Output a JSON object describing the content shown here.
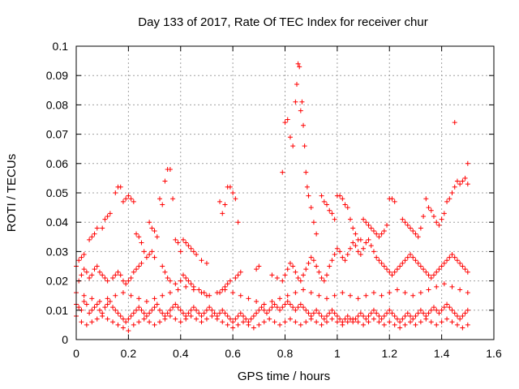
{
  "chart_data": {
    "type": "scatter",
    "title": "Day 133 of 2017, Rate Of TEC Index for receiver chur",
    "xlabel": "GPS time / hours",
    "ylabel": "ROTI / TECUs",
    "xlim": [
      0,
      1.6
    ],
    "ylim": [
      0,
      0.1
    ],
    "xticks": [
      "0",
      "0.2",
      "0.4",
      "0.6",
      "0.8",
      "1",
      "1.2",
      "1.4",
      "1.6"
    ],
    "yticks": [
      "0",
      "0.01",
      "0.02",
      "0.03",
      "0.04",
      "0.05",
      "0.06",
      "0.07",
      "0.08",
      "0.09",
      "0.1"
    ],
    "grid": true,
    "marker": "+",
    "series_color": "#ff0000",
    "series": [
      {
        "x": [
          0.0,
          0.01,
          0.02,
          0.03,
          0.04,
          0.05,
          0.06,
          0.07,
          0.08,
          0.09,
          0.1,
          0.11,
          0.12,
          0.13,
          0.14,
          0.15,
          0.16,
          0.17,
          0.18,
          0.19,
          0.2,
          0.21,
          0.22,
          0.23,
          0.24,
          0.25,
          0.26,
          0.27,
          0.28,
          0.29,
          0.3,
          0.31,
          0.32,
          0.33,
          0.34,
          0.35,
          0.36,
          0.37,
          0.38,
          0.39,
          0.4,
          0.41,
          0.42,
          0.43,
          0.44,
          0.45,
          0.46,
          0.47,
          0.48,
          0.49,
          0.5,
          0.51,
          0.52,
          0.53,
          0.54,
          0.55,
          0.56,
          0.57,
          0.58,
          0.59,
          0.6,
          0.61,
          0.62,
          0.63,
          0.64,
          0.65,
          0.66,
          0.67,
          0.68,
          0.69,
          0.7,
          0.71,
          0.72,
          0.73,
          0.74,
          0.75,
          0.76,
          0.77,
          0.78,
          0.79,
          0.8,
          0.81,
          0.82,
          0.83,
          0.84,
          0.85,
          0.86,
          0.87,
          0.88,
          0.89,
          0.9,
          0.91,
          0.92,
          0.93,
          0.94,
          0.95,
          0.96,
          0.97,
          0.98,
          0.99,
          1.0,
          1.01,
          1.02,
          1.03,
          1.04,
          1.05,
          1.06,
          1.07,
          1.08,
          1.09,
          1.1,
          1.11,
          1.12,
          1.13,
          1.14,
          1.15,
          1.16,
          1.17,
          1.18,
          1.19,
          1.2,
          1.21,
          1.22,
          1.23,
          1.24,
          1.25,
          1.26,
          1.27,
          1.28,
          1.29,
          1.3,
          1.31,
          1.32,
          1.33,
          1.34,
          1.35,
          1.36,
          1.37,
          1.38,
          1.39,
          1.4,
          1.41,
          1.42,
          1.43,
          1.44,
          1.45,
          1.46,
          1.47,
          1.48,
          1.49,
          1.5,
          0.0,
          0.02,
          0.04,
          0.06,
          0.08,
          0.1,
          0.12,
          0.14,
          0.16,
          0.18,
          0.2,
          0.22,
          0.24,
          0.26,
          0.28,
          0.3,
          0.32,
          0.34,
          0.36,
          0.38,
          0.4,
          0.42,
          0.44,
          0.46,
          0.48,
          0.5,
          0.52,
          0.54,
          0.56,
          0.58,
          0.6,
          0.62,
          0.64,
          0.66,
          0.68,
          0.7,
          0.72,
          0.74,
          0.76,
          0.78,
          0.8,
          0.82,
          0.84,
          0.86,
          0.88,
          0.9,
          0.92,
          0.94,
          0.96,
          0.98,
          1.0,
          1.02,
          1.04,
          1.06,
          1.08,
          1.1,
          1.12,
          1.14,
          1.16,
          1.18,
          1.2,
          1.22,
          1.24,
          1.26,
          1.28,
          1.3,
          1.32,
          1.34,
          1.36,
          1.38,
          1.4,
          1.42,
          1.44,
          1.46,
          1.48,
          1.5,
          0.0,
          0.03,
          0.06,
          0.09,
          0.12,
          0.15,
          0.18,
          0.21,
          0.24,
          0.27,
          0.3,
          0.33,
          0.36,
          0.39,
          0.42,
          0.45,
          0.48,
          0.51,
          0.54,
          0.57,
          0.6,
          0.63,
          0.66,
          0.69,
          0.72,
          0.75,
          0.78,
          0.81,
          0.84,
          0.87,
          0.9,
          0.93,
          0.96,
          0.99,
          1.02,
          1.05,
          1.08,
          1.11,
          1.14,
          1.17,
          1.2,
          1.23,
          1.26,
          1.29,
          1.32,
          1.35,
          1.38,
          1.41,
          1.44,
          1.47,
          1.5,
          0.01,
          0.02,
          0.03,
          0.04,
          0.05,
          0.06,
          0.07,
          0.08,
          0.09,
          0.1,
          0.11,
          0.12,
          0.14,
          0.15,
          0.16,
          0.17,
          0.18,
          0.19,
          0.2,
          0.21,
          0.22,
          0.23,
          0.24,
          0.25,
          0.27,
          0.28,
          0.29,
          0.3,
          0.33,
          0.34,
          0.35,
          0.36,
          0.38,
          0.4,
          0.41,
          0.42,
          0.43,
          0.44,
          0.45,
          0.47,
          0.49,
          0.5,
          0.55,
          0.56,
          0.57,
          0.58,
          0.59,
          0.61,
          0.62,
          0.63,
          0.69,
          0.7,
          0.75,
          0.77,
          0.79,
          0.8,
          0.81,
          0.82,
          0.83,
          0.84,
          0.85,
          0.86,
          0.87,
          0.88,
          0.89,
          0.9,
          0.91,
          0.92,
          0.93,
          0.94,
          0.95,
          0.96,
          0.97,
          0.98,
          0.99,
          1.0,
          1.01,
          1.02,
          1.03,
          1.04,
          1.05,
          1.06,
          1.07,
          1.08,
          1.09,
          1.1,
          1.11,
          1.12,
          1.13,
          1.14,
          1.15,
          1.16,
          1.17,
          1.18,
          1.19,
          1.2,
          1.21,
          1.22,
          1.23,
          1.24,
          1.25,
          1.26,
          1.27,
          1.28,
          1.29,
          1.3,
          1.31,
          1.32,
          1.33,
          1.34,
          1.35,
          1.36,
          1.37,
          1.38,
          1.39,
          1.4,
          1.41,
          1.42,
          1.43,
          1.44,
          1.45,
          1.46,
          1.47,
          1.48,
          1.49,
          1.5,
          0.79,
          0.8,
          0.81,
          0.82,
          0.83,
          0.84,
          0.845,
          0.85,
          0.855,
          0.86,
          0.865,
          0.87,
          0.875,
          0.88,
          0.885,
          0.89,
          0.9,
          0.91,
          0.92,
          1.45,
          1.5
        ],
        "y": [
          0.012,
          0.011,
          0.01,
          0.013,
          0.012,
          0.009,
          0.01,
          0.011,
          0.012,
          0.01,
          0.009,
          0.011,
          0.012,
          0.013,
          0.011,
          0.01,
          0.009,
          0.008,
          0.007,
          0.006,
          0.007,
          0.008,
          0.009,
          0.01,
          0.011,
          0.01,
          0.009,
          0.008,
          0.009,
          0.01,
          0.011,
          0.012,
          0.01,
          0.009,
          0.008,
          0.009,
          0.01,
          0.011,
          0.012,
          0.011,
          0.01,
          0.009,
          0.008,
          0.009,
          0.01,
          0.011,
          0.01,
          0.009,
          0.008,
          0.009,
          0.01,
          0.011,
          0.01,
          0.009,
          0.008,
          0.009,
          0.01,
          0.009,
          0.008,
          0.007,
          0.006,
          0.007,
          0.008,
          0.009,
          0.008,
          0.007,
          0.006,
          0.007,
          0.008,
          0.009,
          0.01,
          0.011,
          0.01,
          0.009,
          0.01,
          0.011,
          0.012,
          0.011,
          0.01,
          0.011,
          0.012,
          0.013,
          0.012,
          0.011,
          0.01,
          0.011,
          0.012,
          0.011,
          0.01,
          0.009,
          0.008,
          0.009,
          0.01,
          0.009,
          0.008,
          0.007,
          0.008,
          0.009,
          0.01,
          0.009,
          0.008,
          0.007,
          0.006,
          0.007,
          0.008,
          0.007,
          0.006,
          0.007,
          0.008,
          0.009,
          0.008,
          0.007,
          0.008,
          0.009,
          0.01,
          0.009,
          0.008,
          0.007,
          0.008,
          0.009,
          0.01,
          0.009,
          0.008,
          0.007,
          0.006,
          0.007,
          0.008,
          0.009,
          0.008,
          0.007,
          0.008,
          0.009,
          0.01,
          0.009,
          0.008,
          0.009,
          0.01,
          0.011,
          0.01,
          0.009,
          0.01,
          0.011,
          0.012,
          0.011,
          0.01,
          0.009,
          0.008,
          0.007,
          0.008,
          0.009,
          0.01,
          0.008,
          0.006,
          0.005,
          0.006,
          0.007,
          0.008,
          0.007,
          0.006,
          0.005,
          0.004,
          0.003,
          0.005,
          0.006,
          0.007,
          0.006,
          0.005,
          0.006,
          0.007,
          0.008,
          0.007,
          0.006,
          0.007,
          0.008,
          0.007,
          0.006,
          0.007,
          0.008,
          0.007,
          0.006,
          0.005,
          0.004,
          0.005,
          0.006,
          0.005,
          0.004,
          0.005,
          0.006,
          0.007,
          0.006,
          0.005,
          0.006,
          0.007,
          0.006,
          0.005,
          0.006,
          0.007,
          0.006,
          0.005,
          0.006,
          0.007,
          0.006,
          0.005,
          0.006,
          0.007,
          0.006,
          0.005,
          0.006,
          0.007,
          0.006,
          0.005,
          0.006,
          0.005,
          0.004,
          0.005,
          0.006,
          0.005,
          0.006,
          0.007,
          0.006,
          0.005,
          0.006,
          0.007,
          0.006,
          0.005,
          0.004,
          0.005,
          0.016,
          0.015,
          0.014,
          0.013,
          0.014,
          0.015,
          0.016,
          0.015,
          0.014,
          0.013,
          0.014,
          0.015,
          0.016,
          0.017,
          0.018,
          0.017,
          0.016,
          0.015,
          0.016,
          0.017,
          0.016,
          0.015,
          0.014,
          0.013,
          0.012,
          0.013,
          0.014,
          0.015,
          0.016,
          0.017,
          0.016,
          0.015,
          0.014,
          0.015,
          0.016,
          0.015,
          0.014,
          0.015,
          0.016,
          0.015,
          0.016,
          0.017,
          0.016,
          0.015,
          0.016,
          0.017,
          0.018,
          0.019,
          0.018,
          0.017,
          0.016,
          0.02,
          0.022,
          0.024,
          0.023,
          0.021,
          0.022,
          0.024,
          0.025,
          0.023,
          0.022,
          0.021,
          0.02,
          0.021,
          0.022,
          0.023,
          0.022,
          0.02,
          0.019,
          0.02,
          0.021,
          0.023,
          0.024,
          0.025,
          0.026,
          0.028,
          0.029,
          0.03,
          0.028,
          0.025,
          0.023,
          0.021,
          0.02,
          0.019,
          0.02,
          0.022,
          0.021,
          0.02,
          0.019,
          0.018,
          0.017,
          0.016,
          0.015,
          0.016,
          0.017,
          0.018,
          0.019,
          0.02,
          0.021,
          0.022,
          0.023,
          0.024,
          0.025,
          0.022,
          0.021,
          0.02,
          0.022,
          0.024,
          0.026,
          0.025,
          0.023,
          0.021,
          0.02,
          0.022,
          0.024,
          0.026,
          0.028,
          0.027,
          0.025,
          0.023,
          0.021,
          0.02,
          0.022,
          0.025,
          0.027,
          0.029,
          0.031,
          0.03,
          0.028,
          0.027,
          0.029,
          0.031,
          0.033,
          0.032,
          0.03,
          0.029,
          0.031,
          0.033,
          0.034,
          0.032,
          0.03,
          0.028,
          0.027,
          0.026,
          0.025,
          0.024,
          0.023,
          0.022,
          0.023,
          0.024,
          0.025,
          0.026,
          0.027,
          0.028,
          0.029,
          0.028,
          0.027,
          0.026,
          0.025,
          0.024,
          0.023,
          0.022,
          0.021,
          0.022,
          0.023,
          0.024,
          0.025,
          0.026,
          0.027,
          0.028,
          0.029,
          0.028,
          0.027,
          0.026,
          0.025,
          0.024,
          0.023,
          0.057,
          0.074,
          0.075,
          0.069,
          0.066,
          0.081,
          0.087,
          0.094,
          0.093,
          0.078,
          0.081,
          0.073,
          0.066,
          0.057,
          0.052,
          0.049,
          0.045,
          0.04,
          0.036,
          0.074,
          0.06
        ]
      },
      {
        "x": [
          0.0,
          0.01,
          0.02,
          0.03,
          0.05,
          0.06,
          0.07,
          0.08,
          0.1,
          0.11,
          0.12,
          0.13,
          0.15,
          0.16,
          0.17,
          0.18,
          0.19,
          0.2,
          0.21,
          0.22,
          0.23,
          0.24,
          0.25,
          0.26,
          0.28,
          0.29,
          0.3,
          0.31,
          0.32,
          0.33,
          0.34,
          0.35,
          0.36,
          0.37,
          0.38,
          0.39,
          0.4,
          0.41,
          0.42,
          0.43,
          0.44,
          0.45,
          0.46,
          0.48,
          0.5,
          0.55,
          0.56,
          0.57,
          0.58,
          0.59,
          0.6,
          0.61,
          0.62,
          0.94,
          0.95,
          0.96,
          0.97,
          0.98,
          0.99,
          1.0,
          1.01,
          1.02,
          1.03,
          1.04,
          1.05,
          1.06,
          1.07,
          1.08,
          1.09,
          1.1,
          1.11,
          1.12,
          1.13,
          1.14,
          1.15,
          1.16,
          1.17,
          1.18,
          1.19,
          1.2,
          1.21,
          1.22,
          1.25,
          1.26,
          1.27,
          1.28,
          1.29,
          1.3,
          1.31,
          1.32,
          1.33,
          1.34,
          1.35,
          1.36,
          1.37,
          1.38,
          1.39,
          1.4,
          1.41,
          1.42,
          1.43,
          1.44,
          1.45,
          1.46,
          1.47,
          1.48,
          1.49,
          1.5
        ],
        "y": [
          0.025,
          0.027,
          0.028,
          0.029,
          0.034,
          0.035,
          0.036,
          0.038,
          0.038,
          0.041,
          0.042,
          0.043,
          0.05,
          0.052,
          0.052,
          0.047,
          0.048,
          0.049,
          0.048,
          0.047,
          0.036,
          0.035,
          0.033,
          0.03,
          0.04,
          0.038,
          0.037,
          0.035,
          0.048,
          0.046,
          0.054,
          0.058,
          0.058,
          0.048,
          0.034,
          0.033,
          0.03,
          0.034,
          0.033,
          0.032,
          0.031,
          0.03,
          0.029,
          0.027,
          0.026,
          0.047,
          0.043,
          0.046,
          0.052,
          0.052,
          0.05,
          0.048,
          0.04,
          0.049,
          0.047,
          0.046,
          0.044,
          0.043,
          0.041,
          0.049,
          0.049,
          0.048,
          0.046,
          0.045,
          0.041,
          0.038,
          0.036,
          0.034,
          0.034,
          0.041,
          0.04,
          0.039,
          0.038,
          0.037,
          0.036,
          0.035,
          0.036,
          0.037,
          0.039,
          0.048,
          0.048,
          0.047,
          0.041,
          0.04,
          0.039,
          0.038,
          0.037,
          0.036,
          0.035,
          0.038,
          0.042,
          0.048,
          0.045,
          0.044,
          0.042,
          0.04,
          0.039,
          0.041,
          0.043,
          0.047,
          0.048,
          0.05,
          0.052,
          0.054,
          0.053,
          0.054,
          0.055,
          0.053
        ]
      }
    ]
  }
}
